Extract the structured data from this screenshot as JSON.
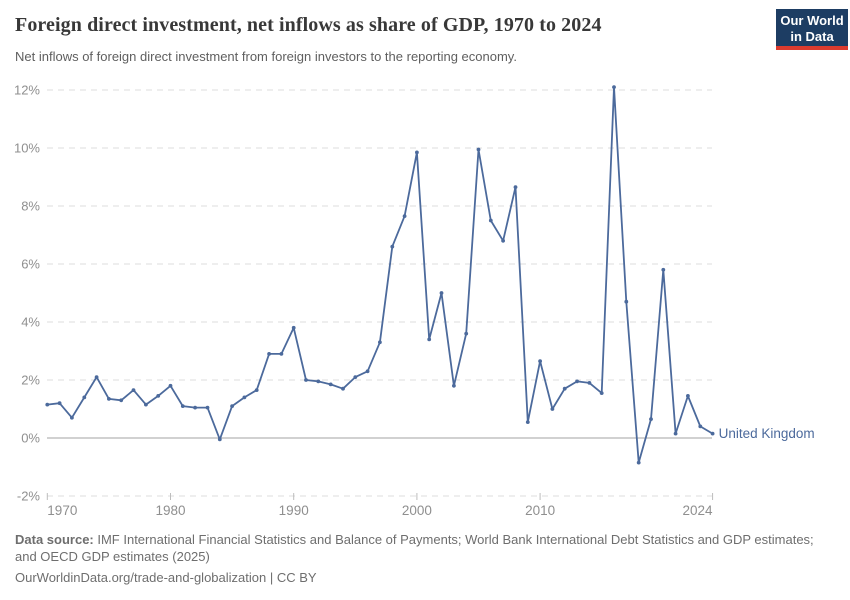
{
  "header": {
    "title": "Foreign direct investment, net inflows as share of GDP, 1970 to 2024",
    "subtitle": "Net inflows of foreign direct investment from foreign investors to the reporting economy.",
    "logo": {
      "line1": "Our World",
      "line2": "in Data",
      "bg": "#1d3d63",
      "accent": "#dc3b2e"
    }
  },
  "chart_data": {
    "type": "line",
    "title": "Foreign direct investment, net inflows as share of GDP, 1970 to 2024",
    "xlabel": "",
    "ylabel": "",
    "xlim": [
      1970,
      2024
    ],
    "ylim": [
      -2,
      12
    ],
    "x_ticks": [
      1970,
      1980,
      1990,
      2000,
      2010,
      2024
    ],
    "y_ticks": [
      12,
      10,
      8,
      6,
      4,
      2,
      0,
      -2
    ],
    "y_tick_suffix": "%",
    "grid": "dashed-horizontal",
    "zero_line": true,
    "legend_position": "end-of-line",
    "axis_text_color": "#8f8f8f",
    "grid_color": "#dcdcdc",
    "zero_line_color": "#a3a3a3",
    "series": [
      {
        "name": "United Kingdom",
        "color": "#4c6a9c",
        "x": [
          1970,
          1971,
          1972,
          1973,
          1974,
          1975,
          1976,
          1977,
          1978,
          1979,
          1980,
          1981,
          1982,
          1983,
          1984,
          1985,
          1986,
          1987,
          1988,
          1989,
          1990,
          1991,
          1992,
          1993,
          1994,
          1995,
          1996,
          1997,
          1998,
          1999,
          2000,
          2001,
          2002,
          2003,
          2004,
          2005,
          2006,
          2007,
          2008,
          2009,
          2010,
          2011,
          2012,
          2013,
          2014,
          2015,
          2016,
          2017,
          2018,
          2019,
          2020,
          2021,
          2022,
          2023,
          2024
        ],
        "values": [
          1.15,
          1.2,
          0.7,
          1.4,
          2.1,
          1.35,
          1.3,
          1.65,
          1.15,
          1.45,
          1.8,
          1.1,
          1.05,
          1.05,
          -0.05,
          1.1,
          1.4,
          1.65,
          2.9,
          2.9,
          3.8,
          2.0,
          1.95,
          1.85,
          1.7,
          2.1,
          2.3,
          3.3,
          6.6,
          7.65,
          9.85,
          3.4,
          5.0,
          1.8,
          3.6,
          9.95,
          7.5,
          6.8,
          8.65,
          0.55,
          2.65,
          1.0,
          1.7,
          1.95,
          1.9,
          1.55,
          12.1,
          4.7,
          -0.85,
          0.65,
          5.8,
          0.15,
          1.45,
          0.4,
          0.15
        ]
      }
    ]
  },
  "footer": {
    "source_label": "Data source:",
    "source_text": " IMF International Financial Statistics and Balance of Payments; World Bank International Debt Statistics and GDP estimates; and OECD GDP estimates (2025)",
    "link_text": "OurWorldinData.org/trade-and-globalization | CC BY"
  }
}
